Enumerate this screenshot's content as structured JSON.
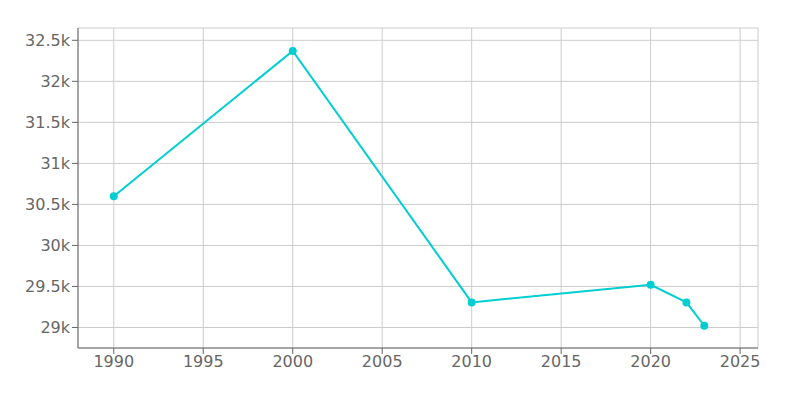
{
  "chart_data": {
    "type": "line",
    "x": [
      1990,
      2000,
      2010,
      2020,
      2022,
      2023
    ],
    "series": [
      {
        "values": [
          30600,
          32370,
          29306,
          29521,
          29306,
          29021
        ],
        "color": "#00CED1",
        "marker": "circle"
      }
    ],
    "xlim": [
      1988,
      2026
    ],
    "ylim": [
      28750,
      32650
    ],
    "xticks": [
      1990,
      1995,
      2000,
      2005,
      2010,
      2015,
      2020,
      2025
    ],
    "yticks": [
      {
        "value": 29000,
        "label": "29k"
      },
      {
        "value": 29500,
        "label": "29.5k"
      },
      {
        "value": 30000,
        "label": "30k"
      },
      {
        "value": 30500,
        "label": "30.5k"
      },
      {
        "value": 31000,
        "label": "31k"
      },
      {
        "value": 31500,
        "label": "31.5k"
      },
      {
        "value": 32000,
        "label": "32k"
      },
      {
        "value": 32500,
        "label": "32.5k"
      }
    ],
    "grid": true
  }
}
